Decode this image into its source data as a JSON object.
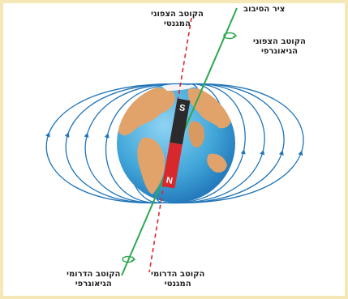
{
  "labels": {
    "magnetic_north": {
      "line1": "הקוטב הצפוני",
      "line2": "המגנטי"
    },
    "rotation_axis": {
      "line1": "ציר הסיבוב"
    },
    "geographic_north": {
      "line1": "הקוטב הצפוני",
      "line2": "הגיאוגרפי"
    },
    "geographic_south": {
      "line1": "הקוטב הדרומי",
      "line2": "הגיאוגרפי"
    },
    "magnetic_south": {
      "line1": "הקוטב הדרומי",
      "line2": "המגנטי"
    }
  },
  "magnet": {
    "top_letter": "S",
    "bottom_letter": "N"
  },
  "colors": {
    "field_lines": "#1f74b8",
    "rotation_axis": "#2fa84f",
    "magnetic_axis": "#d8282c",
    "ocean": "#43a7d9",
    "land": "#e2a36a",
    "magnet_dark": "#2b2b2b",
    "magnet_red": "#d8282c",
    "border": "#f6e7b6"
  },
  "icons": [
    "rotation-arrow-icon"
  ]
}
